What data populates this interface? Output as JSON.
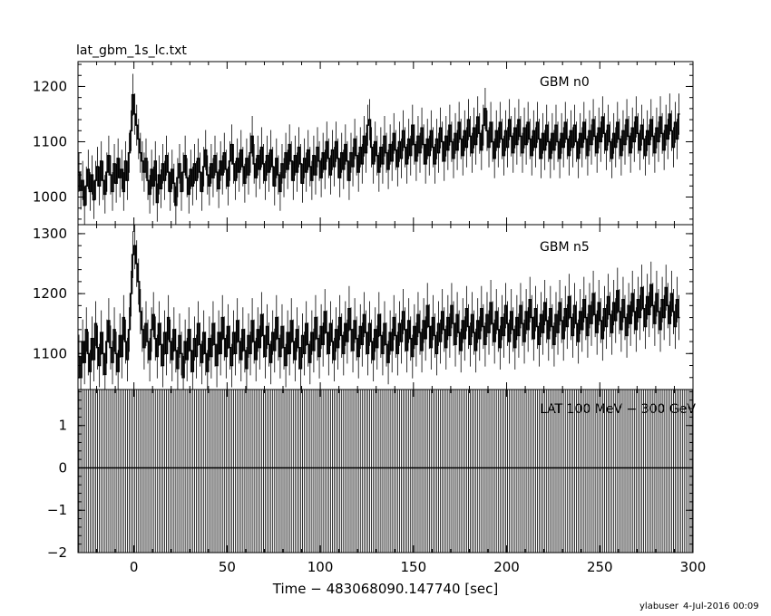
{
  "file_title": "lat_gbm_1s_lc.txt",
  "x_axis": {
    "label": "Time − 483068090.147740 [sec]",
    "range": [
      -30,
      300
    ],
    "ticks": [
      0,
      50,
      100,
      150,
      200,
      250,
      300
    ],
    "tick_labels": [
      "0",
      "50",
      "100",
      "150",
      "200",
      "250",
      "300"
    ]
  },
  "footer": {
    "user": "ylabuser",
    "date": "4-Jul-2016 00:09"
  },
  "chart_data": [
    {
      "type": "line",
      "panel": "top",
      "label": "GBM n0",
      "x_range": [
        -30,
        300
      ],
      "ylim": [
        950,
        1245
      ],
      "y_ticks": [
        1000,
        1100,
        1200
      ],
      "y_tick_labels": [
        "1000",
        "1100",
        "1200"
      ],
      "bin_width": 1,
      "series": [
        {
          "x_start": -30,
          "x_step": 1,
          "values": [
            1045,
            1012,
            1030,
            985,
            1020,
            1050,
            1010,
            1040,
            995,
            1030,
            1055,
            1020,
            1065,
            1030,
            1005,
            1045,
            1075,
            1040,
            1010,
            1060,
            1025,
            1070,
            1035,
            1050,
            1010,
            1065,
            1030,
            1080,
            1120,
            1185,
            1150,
            1130,
            1105,
            1080,
            1065,
            1045,
            1070,
            1030,
            1005,
            1050,
            1020,
            1065,
            990,
            1040,
            1015,
            1060,
            1030,
            1075,
            1045,
            1010,
            1050,
            1025,
            985,
            1035,
            1060,
            1010,
            1045,
            1075,
            1035,
            1005,
            1050,
            1020,
            1060,
            1030,
            1070,
            1045,
            1010,
            1055,
            1085,
            1040,
            1020,
            1060,
            1035,
            1075,
            1045,
            1015,
            1065,
            1040,
            1080,
            1050,
            1020,
            1065,
            1095,
            1060,
            1030,
            1070,
            1045,
            1085,
            1055,
            1025,
            1070,
            1040,
            1080,
            1110,
            1060,
            1035,
            1075,
            1050,
            1090,
            1060,
            1030,
            1075,
            1045,
            1085,
            1055,
            1020,
            1070,
            1040,
            1010,
            1060,
            1035,
            1080,
            1050,
            1095,
            1065,
            1030,
            1075,
            1045,
            1090,
            1060,
            1025,
            1070,
            1045,
            1085,
            1055,
            1030,
            1075,
            1040,
            1090,
            1065,
            1035,
            1080,
            1050,
            1100,
            1070,
            1040,
            1085,
            1055,
            1100,
            1070,
            1035,
            1080,
            1050,
            1095,
            1065,
            1030,
            1080,
            1055,
            1105,
            1075,
            1045,
            1090,
            1060,
            1110,
            1080,
            1130,
            1140,
            1090,
            1060,
            1100,
            1075,
            1045,
            1090,
            1060,
            1110,
            1080,
            1050,
            1095,
            1065,
            1115,
            1085,
            1055,
            1100,
            1070,
            1120,
            1090,
            1060,
            1105,
            1075,
            1130,
            1095,
            1065,
            1110,
            1080,
            1125,
            1095,
            1060,
            1105,
            1075,
            1120,
            1090,
            1060,
            1105,
            1080,
            1125,
            1100,
            1065,
            1110,
            1085,
            1130,
            1100,
            1070,
            1115,
            1085,
            1135,
            1105,
            1075,
            1120,
            1090,
            1140,
            1110,
            1080,
            1125,
            1095,
            1145,
            1115,
            1085,
            1130,
            1160,
            1120,
            1090,
            1135,
            1100,
            1070,
            1120,
            1090,
            1135,
            1105,
            1075,
            1120,
            1090,
            1140,
            1110,
            1080,
            1125,
            1095,
            1140,
            1110,
            1080,
            1125,
            1095,
            1135,
            1105,
            1075,
            1120,
            1090,
            1135,
            1105,
            1070,
            1115,
            1085,
            1130,
            1100,
            1070,
            1115,
            1085,
            1130,
            1100,
            1070,
            1115,
            1090,
            1135,
            1105,
            1075,
            1120,
            1090,
            1130,
            1100,
            1070,
            1115,
            1090,
            1135,
            1105,
            1075,
            1120,
            1095,
            1140,
            1110,
            1080,
            1125,
            1100,
            1145,
            1115,
            1085,
            1130,
            1100,
            1070,
            1115,
            1090,
            1135,
            1105,
            1075,
            1120,
            1095,
            1140,
            1110,
            1080,
            1125,
            1100,
            1145,
            1115,
            1085,
            1130,
            1105,
            1075,
            1120,
            1095,
            1140,
            1110,
            1080,
            1125,
            1100,
            1145,
            1115,
            1085,
            1130,
            1105,
            1150,
            1120,
            1090,
            1135,
            1105,
            1150
          ]
        }
      ]
    },
    {
      "type": "line",
      "panel": "middle",
      "label": "GBM n5",
      "x_range": [
        -30,
        300
      ],
      "ylim": [
        1040,
        1315
      ],
      "y_ticks": [
        1100,
        1200,
        1300
      ],
      "y_tick_labels": [
        "1100",
        "1200",
        "1300"
      ],
      "bin_width": 1,
      "series": [
        {
          "x_start": -30,
          "x_step": 1,
          "values": [
            1095,
            1060,
            1120,
            1085,
            1140,
            1100,
            1070,
            1125,
            1090,
            1150,
            1110,
            1080,
            1135,
            1100,
            1065,
            1120,
            1155,
            1110,
            1085,
            1140,
            1100,
            1070,
            1130,
            1095,
            1160,
            1120,
            1090,
            1140,
            1200,
            1265,
            1280,
            1250,
            1220,
            1170,
            1140,
            1110,
            1150,
            1120,
            1090,
            1140,
            1165,
            1125,
            1095,
            1150,
            1115,
            1080,
            1135,
            1100,
            1160,
            1120,
            1090,
            1140,
            1105,
            1075,
            1130,
            1100,
            1060,
            1120,
            1090,
            1140,
            1105,
            1070,
            1125,
            1095,
            1150,
            1115,
            1085,
            1135,
            1100,
            1070,
            1125,
            1095,
            1150,
            1115,
            1080,
            1135,
            1100,
            1160,
            1125,
            1095,
            1145,
            1110,
            1080,
            1135,
            1100,
            1155,
            1120,
            1090,
            1140,
            1105,
            1075,
            1130,
            1100,
            1155,
            1120,
            1090,
            1140,
            1110,
            1165,
            1130,
            1095,
            1145,
            1115,
            1085,
            1135,
            1105,
            1160,
            1125,
            1095,
            1145,
            1110,
            1080,
            1135,
            1100,
            1155,
            1120,
            1090,
            1140,
            1110,
            1075,
            1130,
            1100,
            1150,
            1115,
            1085,
            1135,
            1105,
            1160,
            1125,
            1095,
            1145,
            1115,
            1170,
            1135,
            1100,
            1150,
            1120,
            1090,
            1140,
            1110,
            1160,
            1130,
            1100,
            1150,
            1120,
            1175,
            1140,
            1105,
            1155,
            1125,
            1095,
            1145,
            1115,
            1165,
            1135,
            1100,
            1150,
            1120,
            1090,
            1140,
            1110,
            1165,
            1130,
            1100,
            1150,
            1115,
            1085,
            1135,
            1105,
            1160,
            1130,
            1100,
            1150,
            1120,
            1170,
            1140,
            1105,
            1155,
            1125,
            1095,
            1145,
            1115,
            1165,
            1135,
            1105,
            1155,
            1125,
            1180,
            1145,
            1110,
            1160,
            1130,
            1100,
            1150,
            1120,
            1170,
            1140,
            1110,
            1160,
            1130,
            1180,
            1150,
            1115,
            1165,
            1135,
            1105,
            1155,
            1125,
            1175,
            1145,
            1115,
            1165,
            1135,
            1105,
            1155,
            1125,
            1175,
            1145,
            1115,
            1165,
            1135,
            1185,
            1150,
            1120,
            1170,
            1140,
            1110,
            1160,
            1130,
            1180,
            1150,
            1120,
            1170,
            1140,
            1110,
            1160,
            1130,
            1180,
            1150,
            1120,
            1170,
            1140,
            1190,
            1160,
            1125,
            1175,
            1145,
            1115,
            1165,
            1135,
            1185,
            1155,
            1125,
            1175,
            1145,
            1115,
            1165,
            1135,
            1185,
            1155,
            1125,
            1175,
            1145,
            1195,
            1160,
            1130,
            1180,
            1150,
            1120,
            1170,
            1140,
            1190,
            1160,
            1130,
            1180,
            1150,
            1200,
            1165,
            1135,
            1185,
            1155,
            1125,
            1175,
            1145,
            1195,
            1165,
            1135,
            1185,
            1155,
            1205,
            1170,
            1140,
            1190,
            1160,
            1130,
            1180,
            1150,
            1200,
            1170,
            1140,
            1190,
            1160,
            1210,
            1175,
            1145,
            1195,
            1165,
            1215,
            1180,
            1150,
            1200,
            1170,
            1140,
            1190,
            1160,
            1210,
            1180,
            1150,
            1200,
            1170,
            1145,
            1190,
            1160
          ]
        }
      ]
    },
    {
      "type": "line",
      "panel": "bottom",
      "label": "LAT 100 MeV − 300 GeV",
      "x_range": [
        -30,
        300
      ],
      "ylim": [
        -2,
        1.85
      ],
      "y_ticks": [
        -2,
        -1,
        0,
        1
      ],
      "y_tick_labels": [
        "−2",
        "−1",
        "0",
        "1"
      ],
      "bin_width": 1,
      "series": [
        {
          "x_start": -30,
          "x_step": 1,
          "constant_value": 0,
          "error_bar_full_range": true
        }
      ]
    }
  ]
}
